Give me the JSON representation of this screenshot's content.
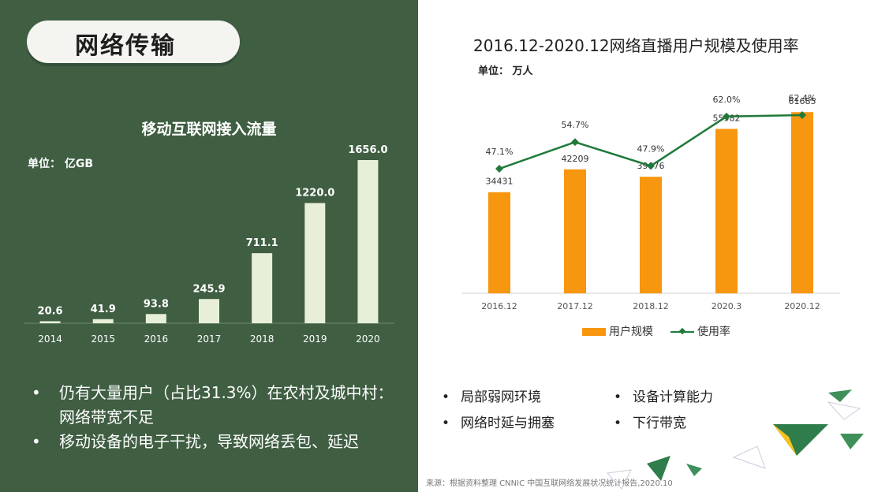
{
  "slide_title": "网络传输",
  "colors": {
    "panel_green": "#3f5e42",
    "bar_light": "#e8efd9",
    "bar_orange": "#f7960f",
    "line_green": "#1f7a3a"
  },
  "left_chart": {
    "title": "移动互联网接入流量",
    "unit": "单位：  亿GB"
  },
  "right_chart": {
    "title": "2016.12-2020.12网络直播用户规模及使用率",
    "unit": "单位：  万人",
    "legend": {
      "bar": "用户规模",
      "line": "使用率"
    }
  },
  "chart_data": [
    {
      "type": "bar",
      "title": "移动互联网接入流量",
      "ylabel": "单位：亿GB",
      "categories": [
        "2014",
        "2015",
        "2016",
        "2017",
        "2018",
        "2019",
        "2020"
      ],
      "values": [
        20.6,
        41.9,
        93.8,
        245.9,
        711.1,
        1220.0,
        1656.0
      ],
      "value_labels": [
        "20.6",
        "41.9",
        "93.8",
        "245.9",
        "711.1",
        "1220.0",
        "1656.0"
      ],
      "ylim": [
        0,
        1656
      ],
      "grid": false
    },
    {
      "type": "bar",
      "title": "2016.12-2020.12网络直播用户规模及使用率",
      "ylabel": "单位：万人",
      "categories": [
        "2016.12",
        "2017.12",
        "2018.12",
        "2020.3",
        "2020.12"
      ],
      "series": [
        {
          "name": "用户规模",
          "type": "bar",
          "values": [
            34431,
            42209,
            39676,
            55982,
            61685
          ],
          "value_labels": [
            "34431",
            "42209",
            "39676",
            "55982",
            "61685"
          ]
        },
        {
          "name": "使用率",
          "type": "line",
          "values": [
            47.1,
            54.7,
            47.9,
            62.0,
            62.4
          ],
          "value_labels": [
            "47.1%",
            "54.7%",
            "47.9%",
            "62.0%",
            "62.4%"
          ]
        }
      ],
      "legend_position": "bottom",
      "grid": false
    }
  ],
  "left_bullets": [
    {
      "dot": "•",
      "text": "仍有大量用户（占比31.3%）在农村及城中村：网络带宽不足"
    },
    {
      "dot": "•",
      "text": "移动设备的电子干扰，导致网络丢包、延迟"
    }
  ],
  "right_factors": [
    {
      "dot": "•",
      "text": "局部弱网环境"
    },
    {
      "dot": "•",
      "text": "设备计算能力"
    },
    {
      "dot": "•",
      "text": "网络时延与拥塞"
    },
    {
      "dot": "•",
      "text": "下行带宽"
    }
  ],
  "source": "来源：根据资料整理 CNNIC 中国互联网络发展状况统计报告,2020.10"
}
